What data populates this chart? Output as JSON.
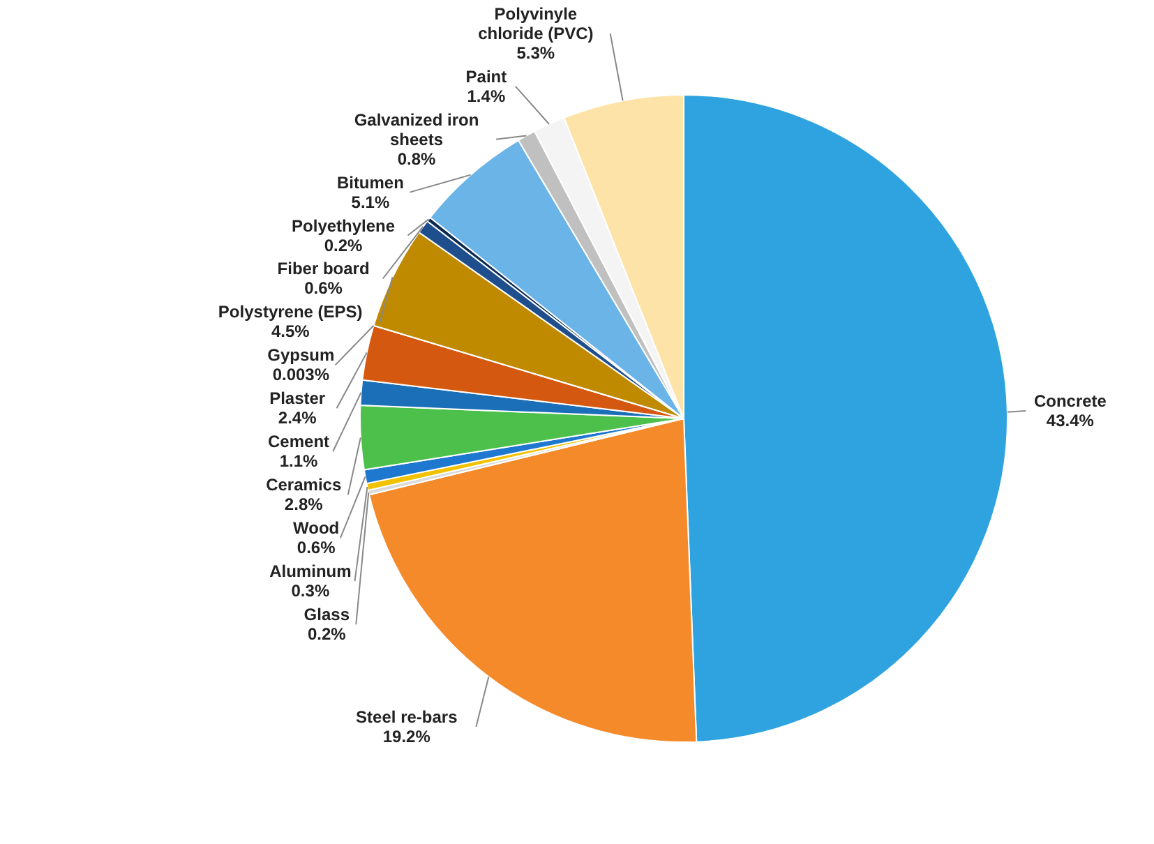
{
  "chart_data": {
    "type": "pie",
    "categories": [
      "Concrete",
      "Steel re-bars",
      "Glass",
      "Aluminum",
      "Wood",
      "Ceramics",
      "Cement",
      "Plaster",
      "Gypsum",
      "Polystyrene (EPS)",
      "Fiber board",
      "Polyethylene",
      "Bitumen",
      "Galvanized iron sheets",
      "Paint",
      "Polyvinyle chloride (PVC)"
    ],
    "values": [
      43.4,
      19.2,
      0.2,
      0.3,
      0.6,
      2.8,
      1.1,
      2.4,
      0.003,
      4.5,
      0.6,
      0.2,
      5.1,
      0.8,
      1.4,
      5.3
    ],
    "value_labels": [
      "43.4%",
      "19.2%",
      "0.2%",
      "0.3%",
      "0.6%",
      "2.8%",
      "1.1%",
      "2.4%",
      "0.003%",
      "4.5%",
      "0.6%",
      "0.2%",
      "5.1%",
      "0.8%",
      "1.4%",
      "5.3%"
    ],
    "colors": [
      "#2ea3e0",
      "#f58a2a",
      "#d9d9d9",
      "#f2c200",
      "#1f78d0",
      "#4cc04a",
      "#1a6fb8",
      "#d4580f",
      "#a0a0a0",
      "#c08a00",
      "#1f4e8c",
      "#0a2a50",
      "#6ab4e8",
      "#c0c0c0",
      "#f4f4f4",
      "#fde3a7"
    ]
  }
}
